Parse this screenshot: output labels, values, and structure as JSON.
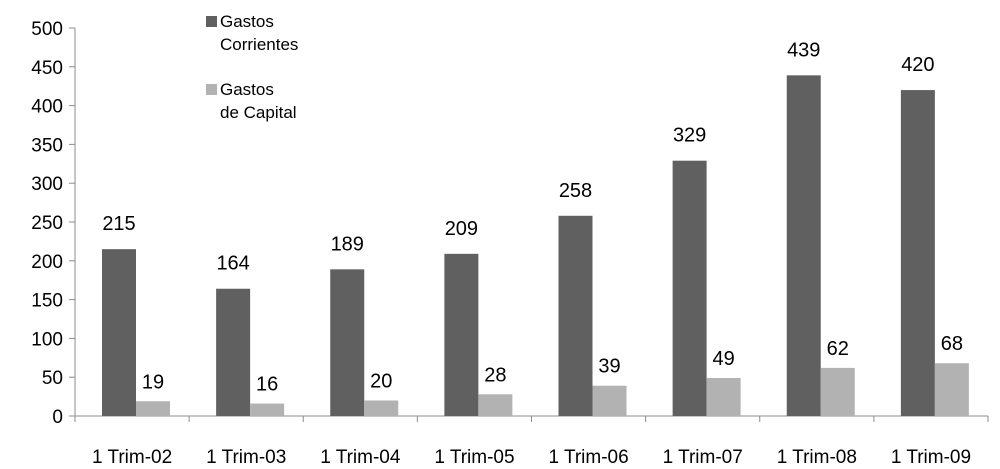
{
  "chart_data": {
    "type": "bar",
    "categories": [
      "1 Trim-02",
      "1 Trim-03",
      "1 Trim-04",
      "1 Trim-05",
      "1 Trim-06",
      "1 Trim-07",
      "1 Trim-08",
      "1 Trim-09"
    ],
    "series": [
      {
        "name": "Gastos Corrientes",
        "legend_lines": [
          "Gastos",
          "Corrientes"
        ],
        "color": "#606060",
        "values": [
          215,
          164,
          189,
          209,
          258,
          329,
          439,
          420
        ]
      },
      {
        "name": "Gastos de Capital",
        "legend_lines": [
          "Gastos",
          "de Capital"
        ],
        "color": "#b2b2b2",
        "values": [
          19,
          16,
          20,
          28,
          39,
          49,
          62,
          68
        ]
      }
    ],
    "ylim": [
      0,
      500
    ],
    "yticks": [
      0,
      50,
      100,
      150,
      200,
      250,
      300,
      350,
      400,
      450,
      500
    ],
    "grid": false,
    "legend_position": "top-left",
    "data_labels": true
  }
}
